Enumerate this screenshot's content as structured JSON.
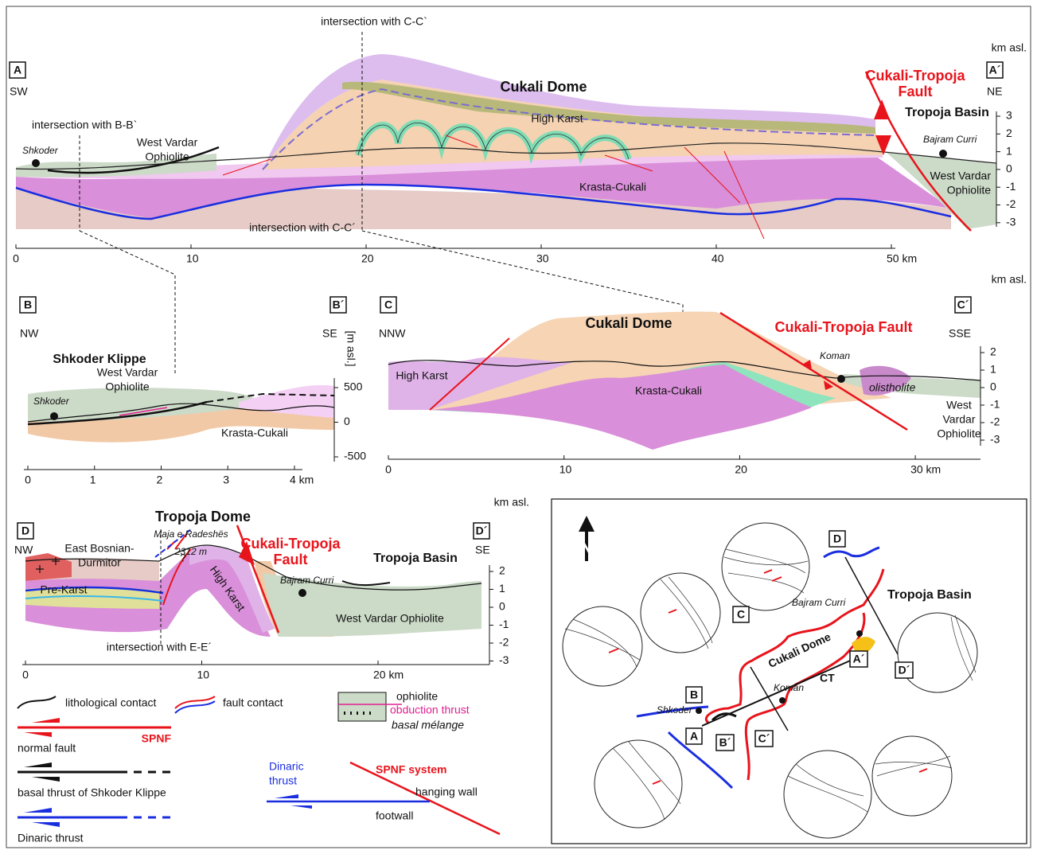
{
  "profile_a": {
    "start": "A",
    "end": "A´",
    "start_dir": "SW",
    "end_dir": "NE",
    "y_unit": "km asl.",
    "title": "Cukali Dome",
    "fault": [
      "Cukali-Tropoja",
      "Fault"
    ],
    "basin": "Tropoja Basin",
    "units": [
      "High Karst",
      "Krasta-Cukali"
    ],
    "ophiolite_left": [
      "West Vardar",
      "Ophiolite"
    ],
    "ophiolite_right": [
      "West Vardar",
      "Ophiolite"
    ],
    "towns": [
      "Shkoder",
      "Bajram Curri"
    ],
    "intersections": [
      "intersection with C-C`",
      "intersection with B-B`",
      "intersection with C-C´"
    ],
    "xticks": [
      "0",
      "10",
      "20",
      "30",
      "40",
      "50 km"
    ],
    "yticks": [
      "3",
      "2",
      "1",
      "0",
      "-1",
      "-2",
      "-3"
    ]
  },
  "profile_b": {
    "start": "B",
    "end": "B´",
    "start_dir": "NW",
    "end_dir": "SE",
    "y_unit": "[m asl.]",
    "title": "Shkoder Klippe",
    "ophiolite": [
      "West Vardar",
      "Ophiolite"
    ],
    "unit": "Krasta-Cukali",
    "town": "Shkoder",
    "xticks": [
      "0",
      "1",
      "2",
      "3",
      "4 km"
    ],
    "yticks": [
      "500",
      "0",
      "-500"
    ]
  },
  "profile_c": {
    "start": "C",
    "end": "C´",
    "start_dir": "NNW",
    "end_dir": "SSE",
    "y_unit": "km asl.",
    "title": "Cukali Dome",
    "fault": "Cukali-Tropoja Fault",
    "units": [
      "High Karst",
      "Krasta-Cukali"
    ],
    "town": "Koman",
    "olistholite": "olistholite",
    "ophiolite": [
      "West",
      "Vardar",
      "Ophiolite"
    ],
    "xticks": [
      "0",
      "10",
      "20",
      "30 km"
    ],
    "yticks": [
      "2",
      "1",
      "0",
      "-1",
      "-2",
      "-3"
    ]
  },
  "profile_d": {
    "start": "D",
    "end": "D´",
    "start_dir": "NW",
    "end_dir": "SE",
    "y_unit": "km asl.",
    "title": "Tropoja Dome",
    "peak": [
      "Maja e Radeshës",
      "2312 m"
    ],
    "fault": [
      "Cukali-Tropoja",
      "Fault"
    ],
    "basin": "Tropoja Basin",
    "east_bosnian": [
      "East Bosnian-",
      "Durmitor"
    ],
    "pre_karst": "Pre-Karst",
    "high_karst": "High Karst",
    "uncertain": "?",
    "town": "Bajram Curri",
    "ophiolite": "West Vardar Ophiolite",
    "intersection": "intersection with E-E´",
    "xticks": [
      "0",
      "10",
      "20 km"
    ],
    "yticks": [
      "2",
      "1",
      "0",
      "-1",
      "-2",
      "-3"
    ]
  },
  "legend": {
    "lithological": "lithological contact",
    "fault_contact": "fault contact",
    "spnf": "SPNF",
    "normal_fault": "normal fault",
    "basal_thrust": "basal thrust of Shkoder Klippe",
    "dinaric": "Dinaric thrust",
    "ophiolite": "ophiolite",
    "obduction": "obduction thrust",
    "melange": "basal mélange",
    "system": {
      "title": "SPNF system",
      "dinaric": [
        "Dinaric",
        "thrust"
      ],
      "hanging": "hanging wall",
      "footwall": "footwall"
    }
  },
  "map": {
    "north": "N",
    "labels": [
      "A",
      "A´",
      "B",
      "B´",
      "C",
      "C´",
      "D",
      "D´"
    ],
    "towns": [
      "Bajram Curri",
      "Shkoder",
      "Koman"
    ],
    "basin": "Tropoja Basin",
    "dome": "Cukali Dome",
    "fault_abbr": "CT"
  }
}
